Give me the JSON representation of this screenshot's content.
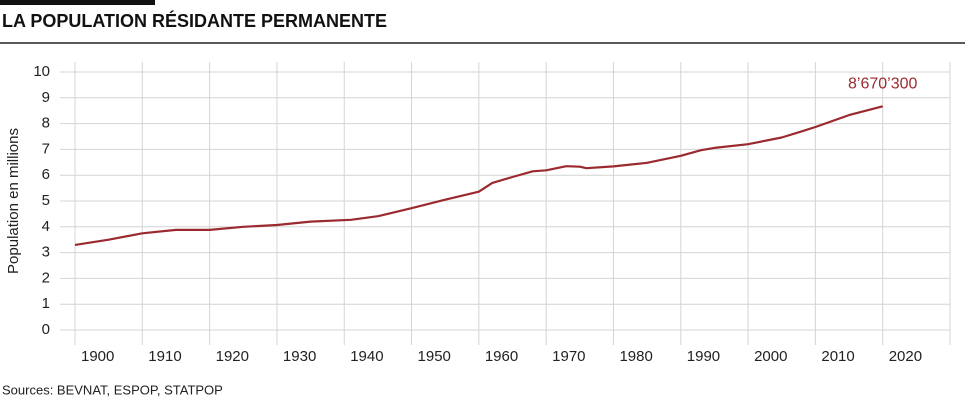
{
  "chart_data": {
    "type": "line",
    "title": "LA POPULATION RÉSIDANTE PERMANENTE",
    "y_label": "Population en millions",
    "source": "Sources: BEVNAT, ESPOP, STATPOP",
    "annotation": "8’670’300",
    "x": [
      1900,
      1905,
      1910,
      1915,
      1918,
      1920,
      1925,
      1930,
      1935,
      1941,
      1945,
      1950,
      1955,
      1960,
      1962,
      1965,
      1968,
      1970,
      1973,
      1975,
      1976,
      1980,
      1985,
      1990,
      1993,
      1995,
      2000,
      2005,
      2008,
      2010,
      2015,
      2020
    ],
    "series": [
      {
        "name": "Population",
        "color": "#9b2a30",
        "values": [
          3.3,
          3.5,
          3.75,
          3.88,
          3.88,
          3.88,
          4.0,
          4.07,
          4.2,
          4.27,
          4.41,
          4.72,
          5.05,
          5.36,
          5.7,
          5.93,
          6.15,
          6.19,
          6.35,
          6.33,
          6.27,
          6.34,
          6.48,
          6.75,
          6.97,
          7.06,
          7.2,
          7.46,
          7.7,
          7.87,
          8.33,
          8.67
        ]
      }
    ],
    "xlim": [
      1900,
      2030
    ],
    "xticks": [
      1900,
      1910,
      1920,
      1930,
      1940,
      1950,
      1960,
      1970,
      1980,
      1990,
      2000,
      2010,
      2020
    ],
    "ylim": [
      0,
      10
    ],
    "yticks": [
      0,
      1,
      2,
      3,
      4,
      5,
      6,
      7,
      8,
      9,
      10
    ],
    "grid": true
  }
}
